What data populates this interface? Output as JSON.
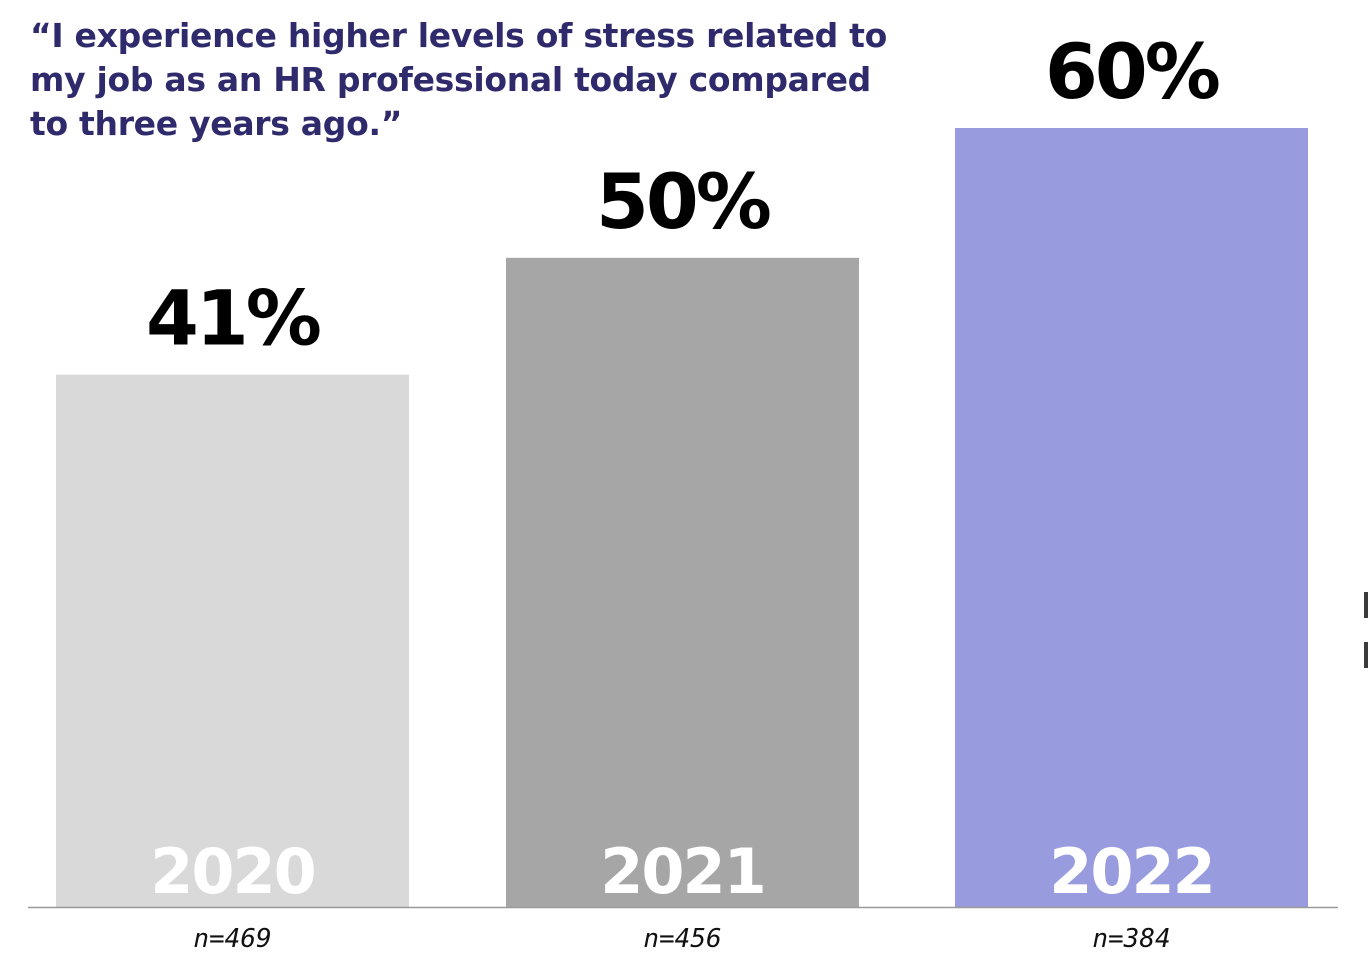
{
  "chart_data": {
    "type": "bar",
    "title": "“I experience higher levels of stress related to my job as an HR professional today compared to three years ago.”",
    "categories": [
      "2020",
      "2021",
      "2022"
    ],
    "values": [
      41,
      50,
      60
    ],
    "value_labels": [
      "41%",
      "50%",
      "60%"
    ],
    "sample_sizes": [
      "n=469",
      "n=456",
      "n=384"
    ],
    "unit": "%",
    "ylim": [
      0,
      60
    ],
    "grid": false,
    "legend": "none",
    "colors": [
      "#d9d9d9",
      "#a6a6a6",
      "#989bdd"
    ],
    "axis_color": "#9a9a9a"
  }
}
